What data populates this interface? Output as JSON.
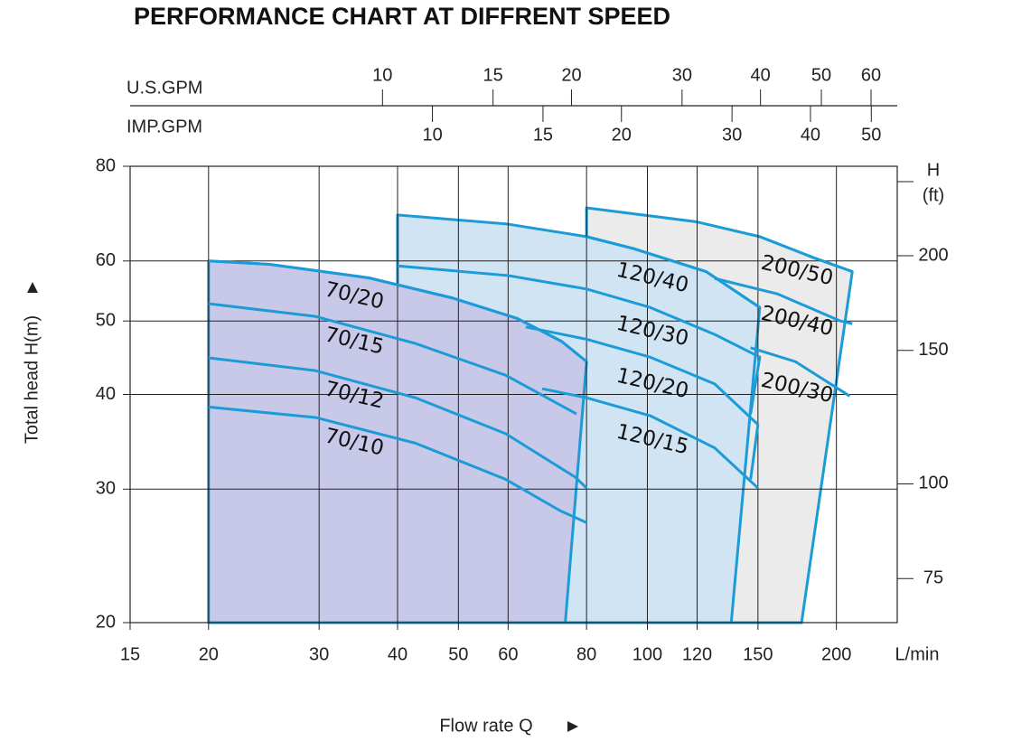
{
  "chart_data": {
    "type": "line",
    "title": "PERFORMANCE CHART AT DIFFRENT SPEED",
    "xlabel": "Flow rate Q",
    "xunit": "L/min",
    "ylabel": "Total  head H(m)",
    "y2label": [
      "H",
      "(ft)"
    ],
    "log_x": true,
    "log_y": true,
    "grid": true,
    "xlim": [
      15,
      250
    ],
    "xticks": [
      15,
      20,
      30,
      40,
      50,
      60,
      80,
      100,
      120,
      150,
      200
    ],
    "ylim": [
      20,
      80
    ],
    "yticks": [
      20,
      30,
      40,
      50,
      60,
      80
    ],
    "y2lim": [
      65.6,
      262.5
    ],
    "y2ticks": [
      75,
      100,
      150,
      200
    ],
    "x2label": "U.S.GPM",
    "x2lim": [
      3.963,
      66.05
    ],
    "x2ticks": [
      10,
      15,
      20,
      30,
      40,
      50,
      60
    ],
    "x3label": "IMP.GPM",
    "x3lim": [
      3.3,
      54.99
    ],
    "x3ticks": [
      10,
      15,
      20,
      30,
      40,
      50
    ],
    "regions": [
      {
        "color": "#ebebeb",
        "x": [
          80,
          80,
          119.5,
          151,
          184,
          212,
          176
        ],
        "values": [
          20,
          70.5,
          67.6,
          64.6,
          60.6,
          58.1,
          20
        ]
      },
      {
        "color": "#d0e4f3",
        "x": [
          40,
          40,
          60,
          80,
          95,
          124,
          151,
          136
        ],
        "values": [
          20,
          69,
          67.1,
          64.6,
          62.3,
          58.1,
          52.1,
          20
        ]
      },
      {
        "color": "#c8c9e8",
        "x": [
          20,
          20,
          25,
          36,
          49,
          62,
          73,
          80,
          74
        ],
        "values": [
          20,
          60,
          59.4,
          57,
          53.6,
          50.4,
          47,
          44.2,
          20
        ]
      }
    ],
    "series": [
      {
        "name": "70/20",
        "color": "#1b9bd7",
        "x": [
          20,
          25,
          36,
          49,
          62,
          73,
          80
        ],
        "values": [
          60,
          59.4,
          57,
          53.6,
          50.4,
          47,
          44.2
        ]
      },
      {
        "name": "70/15",
        "color": "#1b9bd7",
        "x": [
          20,
          29.6,
          42.7,
          59.5,
          77.1
        ],
        "values": [
          52.7,
          50.7,
          46.7,
          42.4,
          37.7
        ]
      },
      {
        "name": "70/12",
        "color": "#1b9bd7",
        "x": [
          20,
          29.6,
          42.7,
          59.5,
          76.8,
          80
        ],
        "values": [
          44.7,
          43,
          39.6,
          35.5,
          31.1,
          30.1
        ]
      },
      {
        "name": "70/10",
        "color": "#1b9bd7",
        "x": [
          20,
          29.6,
          42.7,
          59.5,
          72.6,
          80
        ],
        "values": [
          38.5,
          37.3,
          34.5,
          30.9,
          28.1,
          27.1
        ]
      },
      {
        "name": "120/40",
        "color": "#1b9bd7",
        "x": [
          80,
          95,
          124,
          151
        ],
        "values": [
          64.6,
          62.3,
          58.1,
          52.1
        ]
      },
      {
        "name": "120/30",
        "color": "#1b9bd7",
        "x": [
          40,
          60,
          80,
          101,
          128,
          151,
          146
        ],
        "values": [
          59.1,
          57.4,
          55.1,
          52.1,
          48,
          44.8,
          37.7
        ]
      },
      {
        "name": "120/20",
        "color": "#1b9bd7",
        "x": [
          64,
          80,
          101,
          128,
          150,
          146
        ],
        "values": [
          49.1,
          47.3,
          44.8,
          41.3,
          36.5,
          30.9
        ]
      },
      {
        "name": "120/15",
        "color": "#1b9bd7",
        "x": [
          68,
          80,
          101,
          128,
          150
        ],
        "values": [
          40.7,
          39.6,
          37.5,
          34,
          30.1
        ]
      },
      {
        "name": "200/50",
        "color": "#1b9bd7",
        "x": [
          151,
          184,
          212
        ],
        "values": [
          64.6,
          60.6,
          58.1
        ]
      },
      {
        "name": "200/40",
        "color": "#1b9bd7",
        "x": [
          128,
          161,
          203,
          212
        ],
        "values": [
          56.9,
          54.3,
          50,
          49.6
        ]
      },
      {
        "name": "200/30",
        "color": "#1b9bd7",
        "x": [
          146,
          172,
          210
        ],
        "values": [
          46.1,
          44.2,
          39.8
        ]
      }
    ]
  }
}
